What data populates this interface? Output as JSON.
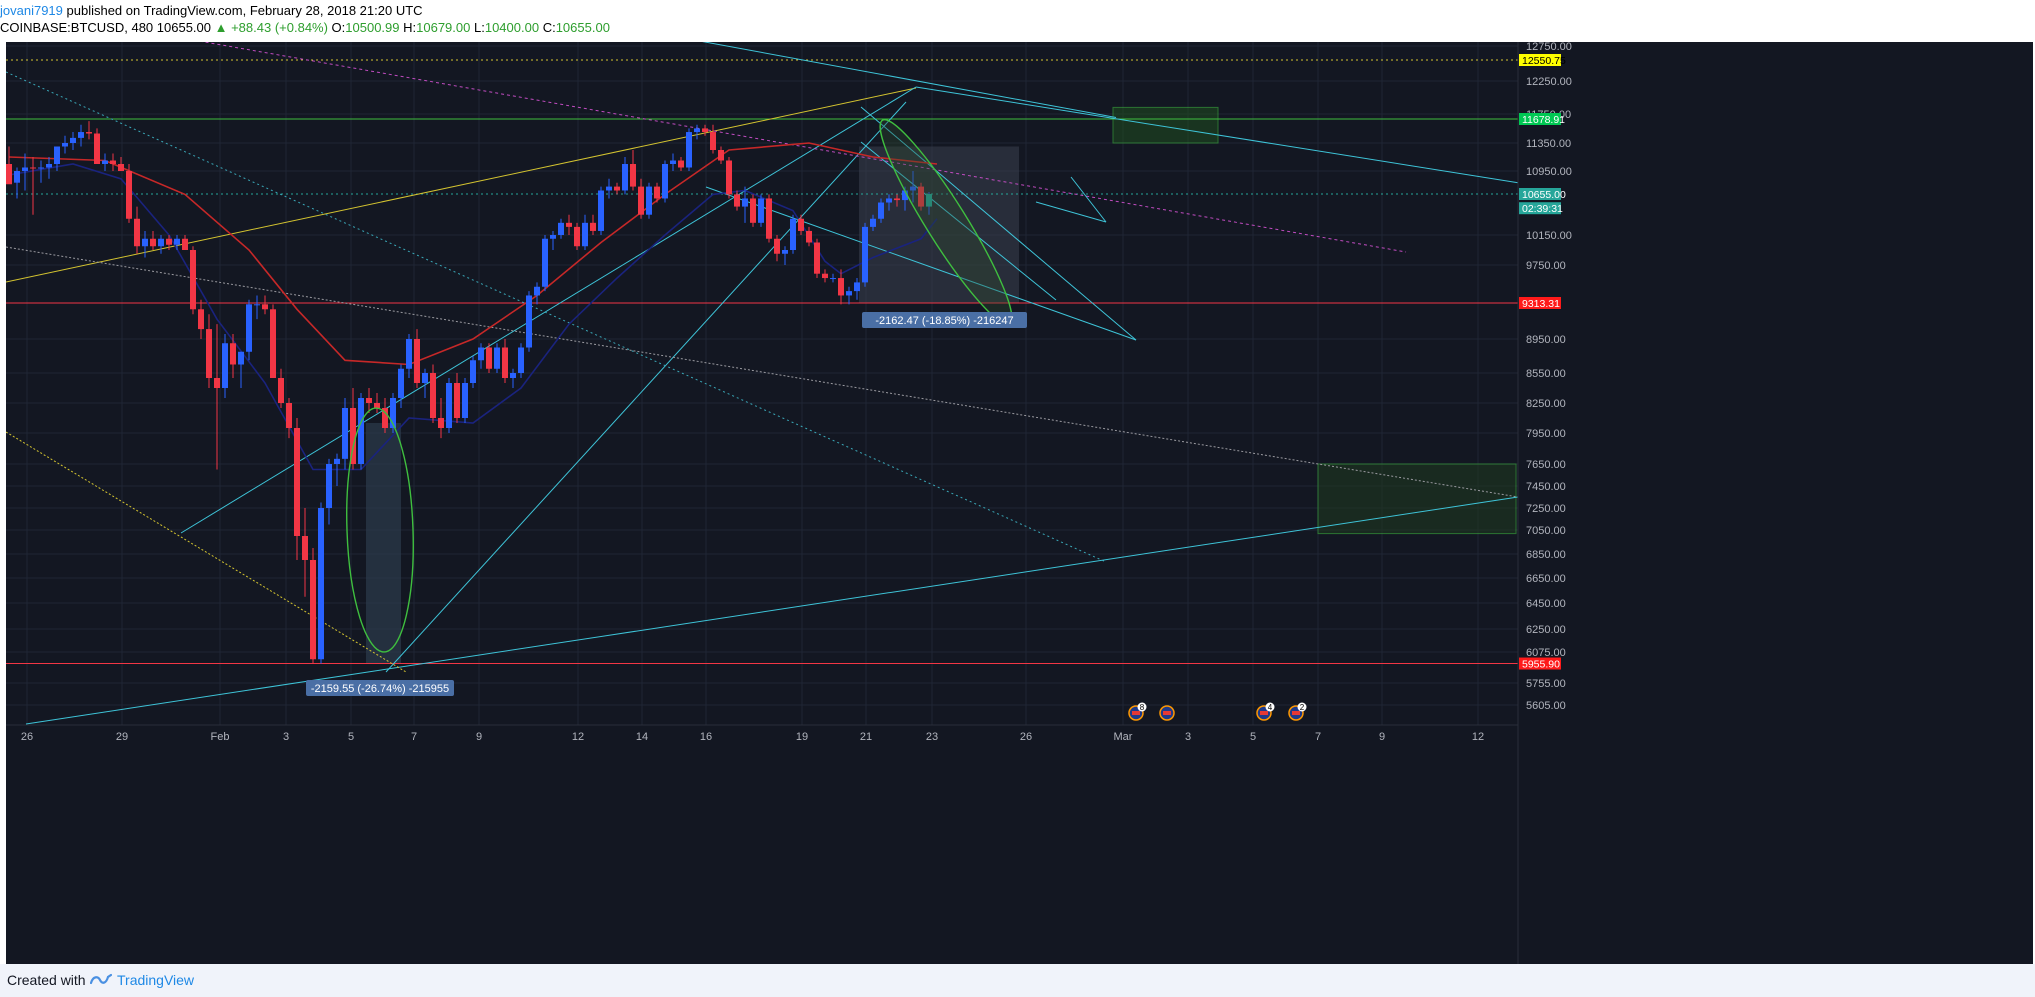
{
  "header": {
    "author": "jovani7919",
    "published": " published on TradingView.com, February 28, 2018 21:20 UTC",
    "symbol_line": "COINBASE:BTCUSD, 480  10655.00 ",
    "change": "▲ +88.43 (+0.84%)",
    "o_label": " O:",
    "o_value": "10500.99",
    "h_label": " H:",
    "h_value": "10679.00",
    "l_label": " L:",
    "l_value": "10400.00",
    "c_label": " C:",
    "c_value": "10655.00"
  },
  "footer": {
    "created_with": "Created with",
    "brand": "TradingView",
    "logo_icon": "tradingview-logo-icon"
  },
  "colors": {
    "background": "#131722",
    "up": "#2962ff",
    "down": "#f23645",
    "cyan": "#3ec4d8",
    "yellow": "#d4c430",
    "magenta": "#c14cc1",
    "green": "#3fbf3f",
    "ma_red": "#c62828",
    "ma_blue": "#1a237e"
  },
  "chart_data": {
    "type": "candlestick",
    "symbol": "COINBASE:BTCUSD",
    "interval": "480",
    "x_ticks": [
      "26",
      "29",
      "Feb",
      "3",
      "5",
      "7",
      "9",
      "12",
      "14",
      "16",
      "19",
      "21",
      "23",
      "26",
      "Mar",
      "3",
      "5",
      "7",
      "9",
      "12"
    ],
    "y_ticks": [
      "12750.00",
      "12250.00",
      "11750.00",
      "11350.00",
      "10950.00",
      "10150.00",
      "9750.00",
      "8950.00",
      "8550.00",
      "8250.00",
      "7950.00",
      "7650.00",
      "7450.00",
      "7250.00",
      "7050.00",
      "6850.00",
      "6650.00",
      "6450.00",
      "6250.00",
      "6075.00",
      "5755.00",
      "5605.00"
    ],
    "price_labels": [
      {
        "text": "12550.75",
        "price": 12550.75,
        "color": "#ffff00"
      },
      {
        "text": "11678.91",
        "price": 11678.91,
        "color": "#00c853"
      },
      {
        "text": "10655.00",
        "price": 10655.0,
        "color": "#26a69a"
      },
      {
        "text": "02:39:31",
        "price": 10480,
        "color": "#26a69a"
      },
      {
        "text": "9313.31",
        "price": 9313.31,
        "color": "#ff1a1a"
      },
      {
        "text": "5955.90",
        "price": 5955.9,
        "color": "#ff1a1a"
      }
    ],
    "horizontal_levels": [
      {
        "price": 12550.75,
        "color": "#d4c430",
        "style": "dotted"
      },
      {
        "price": 11678.91,
        "color": "#3fbf3f",
        "style": "solid"
      },
      {
        "price": 10655.0,
        "color": "#26a69a",
        "style": "dotted"
      },
      {
        "price": 9313.31,
        "color": "#f23645",
        "style": "solid"
      },
      {
        "price": 5955.9,
        "color": "#f23645",
        "style": "solid"
      }
    ],
    "annotations": [
      {
        "text": "-2159.55 (-26.74%) -215955"
      },
      {
        "text": "-2162.47 (-18.85%) -216247"
      }
    ],
    "event_markers": [
      {
        "badge": "8"
      },
      {
        "badge": ""
      },
      {
        "badge": "4"
      },
      {
        "badge": "2"
      }
    ],
    "candles": [
      {
        "o": 11050,
        "h": 11300,
        "l": 10800,
        "c": 10780
      },
      {
        "o": 10800,
        "h": 11000,
        "l": 10600,
        "c": 10950
      },
      {
        "o": 10950,
        "h": 11200,
        "l": 10700,
        "c": 11000
      },
      {
        "o": 11000,
        "h": 11150,
        "l": 10400,
        "c": 10990
      },
      {
        "o": 10990,
        "h": 11100,
        "l": 10800,
        "c": 11000
      },
      {
        "o": 11000,
        "h": 11150,
        "l": 10850,
        "c": 11050
      },
      {
        "o": 11050,
        "h": 11300,
        "l": 10950,
        "c": 11300
      },
      {
        "o": 11300,
        "h": 11450,
        "l": 11200,
        "c": 11350
      },
      {
        "o": 11350,
        "h": 11500,
        "l": 11250,
        "c": 11420
      },
      {
        "o": 11420,
        "h": 11600,
        "l": 11300,
        "c": 11500
      },
      {
        "o": 11500,
        "h": 11650,
        "l": 11400,
        "c": 11480
      },
      {
        "o": 11480,
        "h": 11550,
        "l": 11050,
        "c": 11050
      },
      {
        "o": 11050,
        "h": 11200,
        "l": 10950,
        "c": 11100
      },
      {
        "o": 11100,
        "h": 11200,
        "l": 10950,
        "c": 11050
      },
      {
        "o": 11050,
        "h": 11150,
        "l": 10950,
        "c": 10950
      },
      {
        "o": 10950,
        "h": 11050,
        "l": 10300,
        "c": 10350
      },
      {
        "o": 10350,
        "h": 10500,
        "l": 9900,
        "c": 10000
      },
      {
        "o": 10000,
        "h": 10200,
        "l": 9850,
        "c": 10100
      },
      {
        "o": 10100,
        "h": 10200,
        "l": 9950,
        "c": 10000
      },
      {
        "o": 10000,
        "h": 10150,
        "l": 9900,
        "c": 10100
      },
      {
        "o": 10100,
        "h": 10150,
        "l": 9950,
        "c": 10020
      },
      {
        "o": 10020,
        "h": 10150,
        "l": 9950,
        "c": 10100
      },
      {
        "o": 10100,
        "h": 10150,
        "l": 9950,
        "c": 9950
      },
      {
        "o": 9950,
        "h": 10000,
        "l": 9200,
        "c": 9250
      },
      {
        "o": 9250,
        "h": 9350,
        "l": 8950,
        "c": 9050
      },
      {
        "o": 9050,
        "h": 9200,
        "l": 8400,
        "c": 8500
      },
      {
        "o": 8500,
        "h": 9100,
        "l": 7600,
        "c": 8400
      },
      {
        "o": 8400,
        "h": 9000,
        "l": 8300,
        "c": 8900
      },
      {
        "o": 8900,
        "h": 9000,
        "l": 8500,
        "c": 8650
      },
      {
        "o": 8650,
        "h": 8800,
        "l": 8400,
        "c": 8800
      },
      {
        "o": 8800,
        "h": 9350,
        "l": 8700,
        "c": 9300
      },
      {
        "o": 9300,
        "h": 9400,
        "l": 9150,
        "c": 9300
      },
      {
        "o": 9300,
        "h": 9400,
        "l": 9200,
        "c": 9250
      },
      {
        "o": 9250,
        "h": 9300,
        "l": 8500,
        "c": 8500
      },
      {
        "o": 8500,
        "h": 8600,
        "l": 8200,
        "c": 8250
      },
      {
        "o": 8250,
        "h": 8300,
        "l": 7900,
        "c": 8000
      },
      {
        "o": 8000,
        "h": 8100,
        "l": 6800,
        "c": 7000
      },
      {
        "o": 7000,
        "h": 7250,
        "l": 6500,
        "c": 6800
      },
      {
        "o": 6800,
        "h": 6900,
        "l": 5955,
        "c": 6000
      },
      {
        "o": 6000,
        "h": 7300,
        "l": 5955,
        "c": 7250
      },
      {
        "o": 7250,
        "h": 7700,
        "l": 7100,
        "c": 7650
      },
      {
        "o": 7650,
        "h": 7750,
        "l": 7450,
        "c": 7700
      },
      {
        "o": 7700,
        "h": 8300,
        "l": 7600,
        "c": 8200
      },
      {
        "o": 8200,
        "h": 8400,
        "l": 7600,
        "c": 7650
      },
      {
        "o": 7650,
        "h": 8350,
        "l": 7600,
        "c": 8300
      },
      {
        "o": 8300,
        "h": 8400,
        "l": 8150,
        "c": 8250
      },
      {
        "o": 8250,
        "h": 8350,
        "l": 8150,
        "c": 8200
      },
      {
        "o": 8200,
        "h": 8300,
        "l": 7950,
        "c": 8000
      },
      {
        "o": 8000,
        "h": 8350,
        "l": 7950,
        "c": 8300
      },
      {
        "o": 8300,
        "h": 8650,
        "l": 8200,
        "c": 8600
      },
      {
        "o": 8600,
        "h": 9000,
        "l": 8500,
        "c": 8950
      },
      {
        "o": 8950,
        "h": 9050,
        "l": 8400,
        "c": 8450
      },
      {
        "o": 8450,
        "h": 8600,
        "l": 8300,
        "c": 8550
      },
      {
        "o": 8550,
        "h": 8650,
        "l": 8050,
        "c": 8100
      },
      {
        "o": 8100,
        "h": 8300,
        "l": 7900,
        "c": 8000
      },
      {
        "o": 8000,
        "h": 8500,
        "l": 7950,
        "c": 8450
      },
      {
        "o": 8450,
        "h": 8550,
        "l": 8050,
        "c": 8100
      },
      {
        "o": 8100,
        "h": 8500,
        "l": 8050,
        "c": 8450
      },
      {
        "o": 8450,
        "h": 8750,
        "l": 8400,
        "c": 8700
      },
      {
        "o": 8700,
        "h": 8900,
        "l": 8600,
        "c": 8850
      },
      {
        "o": 8850,
        "h": 8900,
        "l": 8550,
        "c": 8600
      },
      {
        "o": 8600,
        "h": 8900,
        "l": 8550,
        "c": 8850
      },
      {
        "o": 8850,
        "h": 8950,
        "l": 8450,
        "c": 8500
      },
      {
        "o": 8500,
        "h": 8600,
        "l": 8400,
        "c": 8550
      },
      {
        "o": 8550,
        "h": 8900,
        "l": 8500,
        "c": 8850
      },
      {
        "o": 8850,
        "h": 9450,
        "l": 8800,
        "c": 9400
      },
      {
        "o": 9400,
        "h": 9550,
        "l": 9300,
        "c": 9500
      },
      {
        "o": 9500,
        "h": 10150,
        "l": 9450,
        "c": 10100
      },
      {
        "o": 10100,
        "h": 10200,
        "l": 9950,
        "c": 10150
      },
      {
        "o": 10150,
        "h": 10350,
        "l": 10100,
        "c": 10300
      },
      {
        "o": 10300,
        "h": 10400,
        "l": 10150,
        "c": 10250
      },
      {
        "o": 10250,
        "h": 10300,
        "l": 9950,
        "c": 10000
      },
      {
        "o": 10000,
        "h": 10400,
        "l": 9950,
        "c": 10300
      },
      {
        "o": 10300,
        "h": 10400,
        "l": 10150,
        "c": 10200
      },
      {
        "o": 10200,
        "h": 10750,
        "l": 10150,
        "c": 10700
      },
      {
        "o": 10700,
        "h": 10850,
        "l": 10600,
        "c": 10750
      },
      {
        "o": 10750,
        "h": 10800,
        "l": 10650,
        "c": 10700
      },
      {
        "o": 10700,
        "h": 11150,
        "l": 10650,
        "c": 11050
      },
      {
        "o": 11050,
        "h": 11250,
        "l": 10700,
        "c": 10750
      },
      {
        "o": 10750,
        "h": 10850,
        "l": 10350,
        "c": 10400
      },
      {
        "o": 10400,
        "h": 10800,
        "l": 10350,
        "c": 10750
      },
      {
        "o": 10750,
        "h": 10800,
        "l": 10550,
        "c": 10600
      },
      {
        "o": 10600,
        "h": 11100,
        "l": 10550,
        "c": 11050
      },
      {
        "o": 11050,
        "h": 11200,
        "l": 10950,
        "c": 11100
      },
      {
        "o": 11100,
        "h": 11150,
        "l": 10950,
        "c": 11000
      },
      {
        "o": 11000,
        "h": 11550,
        "l": 10950,
        "c": 11500
      },
      {
        "o": 11500,
        "h": 11600,
        "l": 11400,
        "c": 11550
      },
      {
        "o": 11550,
        "h": 11600,
        "l": 11450,
        "c": 11500
      },
      {
        "o": 11500,
        "h": 11600,
        "l": 11200,
        "c": 11250
      },
      {
        "o": 11250,
        "h": 11300,
        "l": 11050,
        "c": 11100
      },
      {
        "o": 11100,
        "h": 11150,
        "l": 10600,
        "c": 10650
      },
      {
        "o": 10650,
        "h": 10700,
        "l": 10450,
        "c": 10500
      },
      {
        "o": 10500,
        "h": 10750,
        "l": 10300,
        "c": 10600
      },
      {
        "o": 10600,
        "h": 10650,
        "l": 10250,
        "c": 10300
      },
      {
        "o": 10300,
        "h": 10650,
        "l": 10250,
        "c": 10600
      },
      {
        "o": 10600,
        "h": 10650,
        "l": 10050,
        "c": 10100
      },
      {
        "o": 10100,
        "h": 10150,
        "l": 9800,
        "c": 9900
      },
      {
        "o": 9900,
        "h": 10000,
        "l": 9750,
        "c": 9950
      },
      {
        "o": 9950,
        "h": 10400,
        "l": 9900,
        "c": 10350
      },
      {
        "o": 10350,
        "h": 10400,
        "l": 10150,
        "c": 10200
      },
      {
        "o": 10200,
        "h": 10250,
        "l": 10000,
        "c": 10050
      },
      {
        "o": 10050,
        "h": 10100,
        "l": 9600,
        "c": 9650
      },
      {
        "o": 9650,
        "h": 9700,
        "l": 9550,
        "c": 9600
      },
      {
        "o": 9600,
        "h": 9650,
        "l": 9550,
        "c": 9600
      },
      {
        "o": 9600,
        "h": 9700,
        "l": 9300,
        "c": 9400
      },
      {
        "o": 9400,
        "h": 9500,
        "l": 9300,
        "c": 9450
      },
      {
        "o": 9450,
        "h": 9600,
        "l": 9350,
        "c": 9550
      },
      {
        "o": 9550,
        "h": 10300,
        "l": 9500,
        "c": 10250
      },
      {
        "o": 10250,
        "h": 10400,
        "l": 10200,
        "c": 10350
      },
      {
        "o": 10350,
        "h": 10600,
        "l": 10300,
        "c": 10550
      },
      {
        "o": 10550,
        "h": 10650,
        "l": 10450,
        "c": 10600
      },
      {
        "o": 10600,
        "h": 10650,
        "l": 10500,
        "c": 10580
      },
      {
        "o": 10580,
        "h": 10750,
        "l": 10450,
        "c": 10700
      },
      {
        "o": 10700,
        "h": 10950,
        "l": 10550,
        "c": 10750
      },
      {
        "o": 10750,
        "h": 10800,
        "l": 10450,
        "c": 10500
      },
      {
        "o": 10500,
        "h": 10679,
        "l": 10400,
        "c": 10655
      }
    ],
    "series": [
      {
        "kind": "moving_average",
        "color": "#c62828",
        "values": [
          [
            0,
            11150
          ],
          [
            12,
            11100
          ],
          [
            22,
            10650
          ],
          [
            30,
            9950
          ],
          [
            36,
            9250
          ],
          [
            42,
            8700
          ],
          [
            50,
            8650
          ],
          [
            58,
            8950
          ],
          [
            66,
            9400
          ],
          [
            74,
            10050
          ],
          [
            82,
            10650
          ],
          [
            90,
            11250
          ],
          [
            100,
            11350
          ],
          [
            108,
            11150
          ],
          [
            116,
            11050
          ]
        ]
      },
      {
        "kind": "moving_average",
        "color": "#1a237e",
        "values": [
          [
            0,
            10900
          ],
          [
            8,
            11050
          ],
          [
            14,
            10850
          ],
          [
            20,
            10150
          ],
          [
            26,
            9150
          ],
          [
            32,
            8450
          ],
          [
            38,
            7600
          ],
          [
            44,
            7600
          ],
          [
            50,
            8100
          ],
          [
            58,
            8050
          ],
          [
            64,
            8400
          ],
          [
            70,
            9100
          ],
          [
            76,
            9600
          ],
          [
            82,
            10150
          ],
          [
            88,
            10650
          ],
          [
            92,
            10700
          ],
          [
            98,
            10450
          ],
          [
            102,
            9800
          ],
          [
            104,
            9650
          ],
          [
            108,
            9850
          ],
          [
            114,
            10100
          ],
          [
            116,
            10350
          ]
        ]
      }
    ]
  }
}
